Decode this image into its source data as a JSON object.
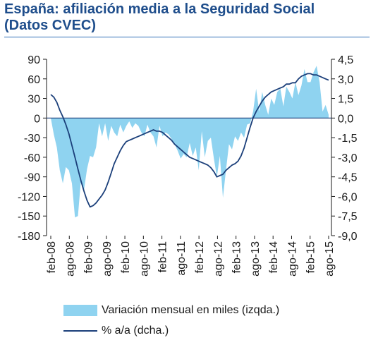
{
  "header": {
    "title_line1": "España: afiliación media a la Seguridad Social",
    "title_line2": "(Datos CVEC)"
  },
  "colors": {
    "area": "#8fd3f0",
    "line": "#1b3f7a",
    "title": "#1f4e8c",
    "axis": "#1a1a1a"
  },
  "chart_data": {
    "type": "area",
    "title": "España: afiliación media a la Seguridad Social (Datos CVEC)",
    "x_tick_labels": [
      "feb-08",
      "ago-08",
      "feb-09",
      "ago-09",
      "feb-10",
      "ago-10",
      "feb-11",
      "ago-11",
      "feb-12",
      "ago-12",
      "feb-13",
      "ago-13",
      "feb-14",
      "ago-14",
      "feb-15",
      "ago-15"
    ],
    "y_left": {
      "ylim": [
        -180,
        90
      ],
      "ticks": [
        "90",
        "60",
        "30",
        "0",
        "-30",
        "-60",
        "-90",
        "-120",
        "-150",
        "-180"
      ]
    },
    "y_right": {
      "ylim": [
        -9.0,
        4.5
      ],
      "ticks": [
        "4,5",
        "3,0",
        "1,5",
        "0,0",
        "-1,5",
        "-3,0",
        "-4,5",
        "-6,0",
        "-7,5",
        "-9,0"
      ]
    },
    "series": [
      {
        "name": "Variación mensual en miles (izqda.)",
        "axis": "left",
        "kind": "area",
        "values": [
          0,
          -25,
          -45,
          -80,
          -100,
          -75,
          -80,
          -100,
          -152,
          -150,
          -95,
          -110,
          -78,
          -58,
          -60,
          -45,
          -8,
          -28,
          -8,
          -35,
          -12,
          -22,
          -28,
          -10,
          -22,
          -12,
          -5,
          -15,
          -8,
          -12,
          -22,
          -28,
          -10,
          -22,
          -28,
          -45,
          -12,
          -28,
          -22,
          -25,
          -32,
          -40,
          -50,
          -62,
          -55,
          -60,
          -38,
          -58,
          -45,
          -80,
          -20,
          -60,
          -35,
          -30,
          -62,
          -90,
          -58,
          -122,
          -80,
          -40,
          -48,
          -28,
          -35,
          -22,
          -30,
          -10,
          -8,
          10,
          45,
          10,
          40,
          20,
          5,
          30,
          20,
          40,
          45,
          18,
          48,
          40,
          30,
          55,
          35,
          50,
          75,
          55,
          55,
          70,
          80,
          55,
          10,
          20,
          5
        ]
      },
      {
        "name": "% a/a (dcha.)",
        "axis": "right",
        "kind": "line",
        "values": [
          1.8,
          1.6,
          1.2,
          0.6,
          0.1,
          -0.5,
          -1.2,
          -2.1,
          -3.0,
          -3.9,
          -4.8,
          -5.6,
          -6.3,
          -6.8,
          -6.7,
          -6.5,
          -6.2,
          -5.9,
          -5.5,
          -4.9,
          -4.2,
          -3.5,
          -3.0,
          -2.5,
          -2.1,
          -1.8,
          -1.7,
          -1.6,
          -1.5,
          -1.4,
          -1.3,
          -1.2,
          -1.1,
          -1.0,
          -0.9,
          -1.0,
          -1.0,
          -1.1,
          -1.3,
          -1.5,
          -1.7,
          -2.0,
          -2.2,
          -2.4,
          -2.6,
          -2.8,
          -3.0,
          -3.1,
          -3.2,
          -3.3,
          -3.4,
          -3.5,
          -3.6,
          -3.8,
          -4.1,
          -4.5,
          -4.4,
          -4.3,
          -4.0,
          -3.8,
          -3.6,
          -3.5,
          -3.3,
          -2.9,
          -2.3,
          -1.5,
          -0.7,
          0.0,
          0.5,
          0.9,
          1.3,
          1.6,
          1.8,
          2.0,
          2.1,
          2.2,
          2.3,
          2.4,
          2.6,
          2.6,
          2.7,
          2.7,
          3.0,
          3.2,
          3.3,
          3.4,
          3.4,
          3.3,
          3.3,
          3.2,
          3.1,
          3.0,
          2.9
        ]
      }
    ],
    "grid": false,
    "legend": "bottom"
  },
  "legend": {
    "area_label": "Variación mensual en miles (izqda.)",
    "line_label": "% a/a (dcha.)"
  }
}
